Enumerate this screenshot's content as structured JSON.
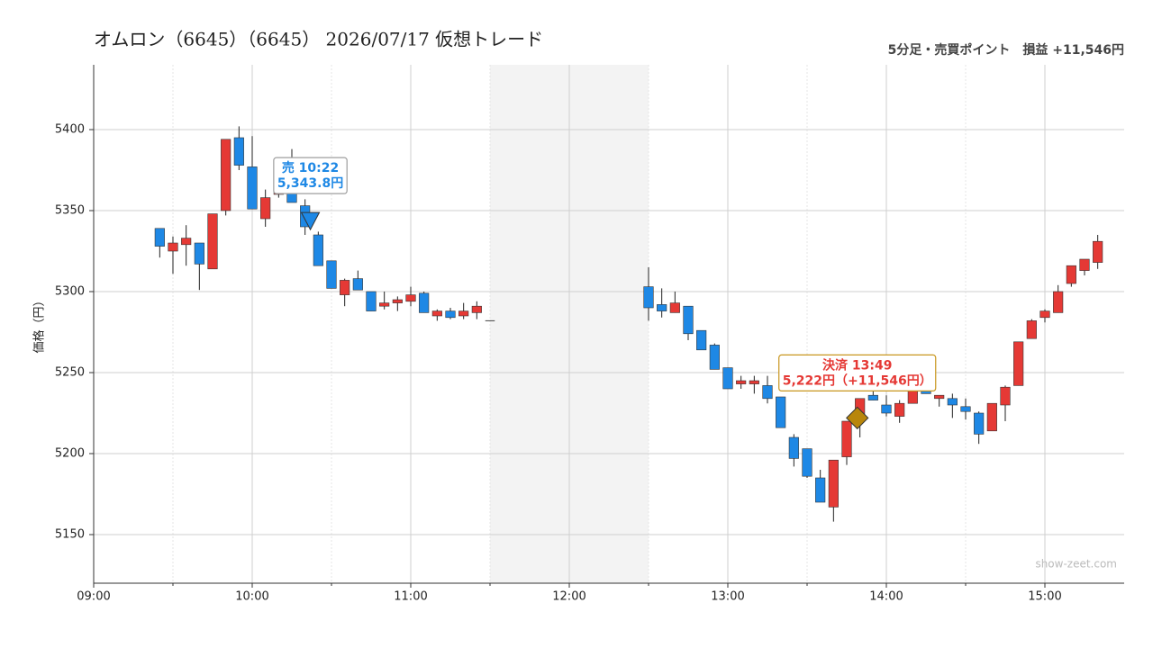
{
  "chart_data": {
    "type": "candlestick",
    "title": "オムロン（6645）（6645） 2026/07/17 仮想トレード",
    "subtitle": "5分足・売買ポイント　損益 +11,546円",
    "y_label": "価格（円）",
    "watermark": "show-zeet.com",
    "up_color": "#e53935",
    "down_color": "#1e88e5",
    "grid": true,
    "xlim": [
      "09:00",
      "15:30"
    ],
    "ylim": [
      5120,
      5440
    ],
    "xticks": [
      "09:00",
      "10:00",
      "11:00",
      "12:00",
      "13:00",
      "14:00",
      "15:00"
    ],
    "minor_xticks": [
      "09:30",
      "10:30",
      "11:30",
      "12:30",
      "13:30",
      "14:30"
    ],
    "yticks": [
      5150,
      5200,
      5250,
      5300,
      5350,
      5400
    ],
    "break": [
      "11:30",
      "12:30"
    ],
    "x": [
      "09:25",
      "09:30",
      "09:35",
      "09:40",
      "09:45",
      "09:50",
      "09:55",
      "10:00",
      "10:05",
      "10:10",
      "10:15",
      "10:20",
      "10:25",
      "10:30",
      "10:35",
      "10:40",
      "10:45",
      "10:50",
      "10:55",
      "11:00",
      "11:05",
      "11:10",
      "11:15",
      "11:20",
      "11:25",
      "11:30",
      "12:30",
      "12:35",
      "12:40",
      "12:45",
      "12:50",
      "12:55",
      "13:00",
      "13:05",
      "13:10",
      "13:15",
      "13:20",
      "13:25",
      "13:30",
      "13:35",
      "13:40",
      "13:45",
      "13:50",
      "13:55",
      "14:00",
      "14:05",
      "14:10",
      "14:15",
      "14:20",
      "14:25",
      "14:30",
      "14:35",
      "14:40",
      "14:45",
      "14:50",
      "14:55",
      "15:00",
      "15:05",
      "15:10",
      "15:15",
      "15:20"
    ],
    "open": [
      5339,
      5325,
      5329,
      5330,
      5314,
      5350,
      5395,
      5377,
      5345,
      5360,
      5367,
      5353,
      5335,
      5319,
      5298,
      5308,
      5300,
      5291,
      5293,
      5294,
      5299,
      5285,
      5288,
      5285,
      5287,
      5282,
      5303,
      5292,
      5287,
      5291,
      5276,
      5267,
      5253,
      5243,
      5243,
      5242,
      5235,
      5210,
      5203,
      5185,
      5167,
      5198,
      5223,
      5236,
      5230,
      5223,
      5231,
      5240,
      5234,
      5234,
      5229,
      5225,
      5214,
      5230,
      5242,
      5271,
      5284,
      5287,
      5305,
      5313,
      5318
    ],
    "high": [
      5339,
      5334,
      5341,
      5330,
      5348,
      5394,
      5402,
      5396,
      5363,
      5370,
      5388,
      5357,
      5337,
      5319,
      5308,
      5313,
      5300,
      5300,
      5297,
      5303,
      5300,
      5289,
      5290,
      5293,
      5294,
      5282,
      5315,
      5302,
      5300,
      5291,
      5276,
      5268,
      5253,
      5248,
      5248,
      5248,
      5235,
      5212,
      5203,
      5190,
      5196,
      5220,
      5234,
      5240,
      5236,
      5233,
      5242,
      5240,
      5236,
      5237,
      5234,
      5226,
      5231,
      5242,
      5269,
      5283,
      5289,
      5304,
      5316,
      5320,
      5335
    ],
    "low": [
      5321,
      5311,
      5316,
      5301,
      5314,
      5347,
      5375,
      5351,
      5340,
      5358,
      5355,
      5335,
      5316,
      5302,
      5291,
      5301,
      5288,
      5289,
      5288,
      5291,
      5287,
      5282,
      5283,
      5283,
      5283,
      5282,
      5282,
      5284,
      5287,
      5270,
      5264,
      5252,
      5240,
      5240,
      5237,
      5231,
      5216,
      5192,
      5185,
      5170,
      5158,
      5193,
      5210,
      5233,
      5223,
      5219,
      5231,
      5237,
      5229,
      5222,
      5221,
      5206,
      5214,
      5220,
      5242,
      5271,
      5281,
      5287,
      5303,
      5310,
      5314
    ],
    "close": [
      5328,
      5330,
      5333,
      5317,
      5348,
      5394,
      5378,
      5351,
      5358,
      5366,
      5355,
      5340,
      5316,
      5302,
      5307,
      5301,
      5288,
      5293,
      5295,
      5298,
      5287,
      5288,
      5284,
      5288,
      5291,
      5282,
      5290,
      5288,
      5293,
      5274,
      5264,
      5252,
      5240,
      5245,
      5245,
      5234,
      5216,
      5197,
      5186,
      5170,
      5196,
      5220,
      5234,
      5233,
      5225,
      5231,
      5240,
      5237,
      5236,
      5230,
      5226,
      5212,
      5231,
      5241,
      5269,
      5282,
      5288,
      5300,
      5316,
      5320,
      5331
    ],
    "markers": [
      {
        "shape": "triangle-down",
        "time": "10:22",
        "price": 5343.8,
        "color": "#1e88e5",
        "border": "#9e9e9e",
        "text_color": "#1e88e5",
        "label": "売 10:22",
        "price_label": "5,343.8円"
      },
      {
        "shape": "diamond",
        "time": "13:49",
        "price": 5222,
        "color": "#b8860b",
        "border": "#c8961e",
        "text_color": "#e53935",
        "label": "決済 13:49",
        "price_label": "5,222円（+11,546円）"
      }
    ]
  }
}
